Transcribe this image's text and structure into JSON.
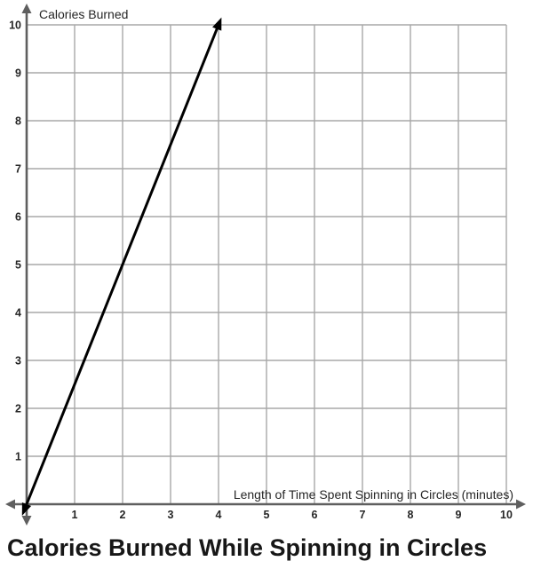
{
  "chart_data": {
    "type": "line",
    "title": "Calories Burned While Spinning in Circles",
    "xlabel": "Length of Time Spent Spinning in Circles (minutes)",
    "ylabel": "Calories Burned",
    "xlim": [
      0,
      10
    ],
    "ylim": [
      0,
      10
    ],
    "x_ticks": [
      1,
      2,
      3,
      4,
      5,
      6,
      7,
      8,
      9,
      10
    ],
    "y_ticks": [
      1,
      2,
      3,
      4,
      5,
      6,
      7,
      8,
      9,
      10
    ],
    "grid": true,
    "legend": "none",
    "series": [
      {
        "name": "calories-vs-minutes-line",
        "x": [
          0,
          4
        ],
        "y": [
          0,
          10
        ],
        "arrow_start": true,
        "arrow_end": true
      }
    ],
    "colors": {
      "grid": "#a8a8a8",
      "axis": "#5f5f5f",
      "line": "#000000",
      "text": "#262626",
      "title": "#171717"
    }
  }
}
